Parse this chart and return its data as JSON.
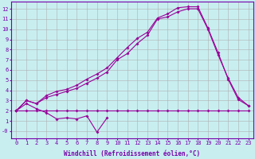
{
  "xlabel": "Windchill (Refroidissement éolien,°C)",
  "background_color": "#c8eef0",
  "grid_color": "#b0b0b0",
  "line_color": "#990099",
  "font_color": "#7700aa",
  "xlim": [
    -0.5,
    23.5
  ],
  "ylim": [
    -0.7,
    12.7
  ],
  "xticks": [
    0,
    1,
    2,
    3,
    4,
    5,
    6,
    7,
    8,
    9,
    10,
    11,
    12,
    13,
    14,
    15,
    16,
    17,
    18,
    19,
    20,
    21,
    22,
    23
  ],
  "yticks": [
    0,
    1,
    2,
    3,
    4,
    5,
    6,
    7,
    8,
    9,
    10,
    11,
    12
  ],
  "yticklabels": [
    "-0",
    "1",
    "2",
    "3",
    "4",
    "5",
    "6",
    "7",
    "8",
    "9",
    "10",
    "11",
    "12"
  ],
  "tick_fontsize": 5.0,
  "label_fontsize": 5.5,
  "line1_x": [
    0,
    1,
    2,
    3,
    4,
    5,
    6,
    7,
    8,
    9,
    10,
    11,
    12,
    13,
    14,
    15,
    16,
    17,
    18,
    19,
    20,
    21,
    22,
    23
  ],
  "line1_y": [
    2,
    2,
    2,
    2,
    2,
    2,
    2,
    2,
    2,
    2,
    2,
    2,
    2,
    2,
    2,
    2,
    2,
    2,
    2,
    2,
    2,
    2,
    2,
    2
  ],
  "line2_x": [
    0,
    1,
    2,
    3,
    4,
    5,
    6,
    7,
    8,
    9
  ],
  "line2_y": [
    2,
    2.7,
    2.2,
    1.8,
    1.2,
    1.3,
    1.2,
    1.5,
    -0.1,
    1.3
  ],
  "line3_x": [
    0,
    1,
    2,
    3,
    4,
    5,
    6,
    7,
    8,
    9,
    10,
    11,
    12,
    13,
    14,
    15,
    16,
    17,
    18,
    19,
    20,
    21,
    22,
    23
  ],
  "line3_y": [
    2,
    3,
    2.7,
    3.3,
    3.6,
    3.9,
    4.2,
    4.7,
    5.2,
    5.8,
    7.0,
    7.6,
    8.6,
    9.4,
    11.0,
    11.2,
    11.7,
    12.0,
    12.0,
    10.0,
    7.5,
    5.2,
    3.3,
    2.5
  ],
  "line4_x": [
    0,
    1,
    2,
    3,
    4,
    5,
    6,
    7,
    8,
    9,
    10,
    11,
    12,
    13,
    14,
    15,
    16,
    17,
    18,
    19,
    20,
    21,
    22,
    23
  ],
  "line4_y": [
    2,
    3,
    2.7,
    3.5,
    3.9,
    4.1,
    4.5,
    5.1,
    5.6,
    6.2,
    7.2,
    8.2,
    9.1,
    9.7,
    11.1,
    11.5,
    12.1,
    12.2,
    12.2,
    10.1,
    7.7,
    5.1,
    3.1,
    2.5
  ]
}
